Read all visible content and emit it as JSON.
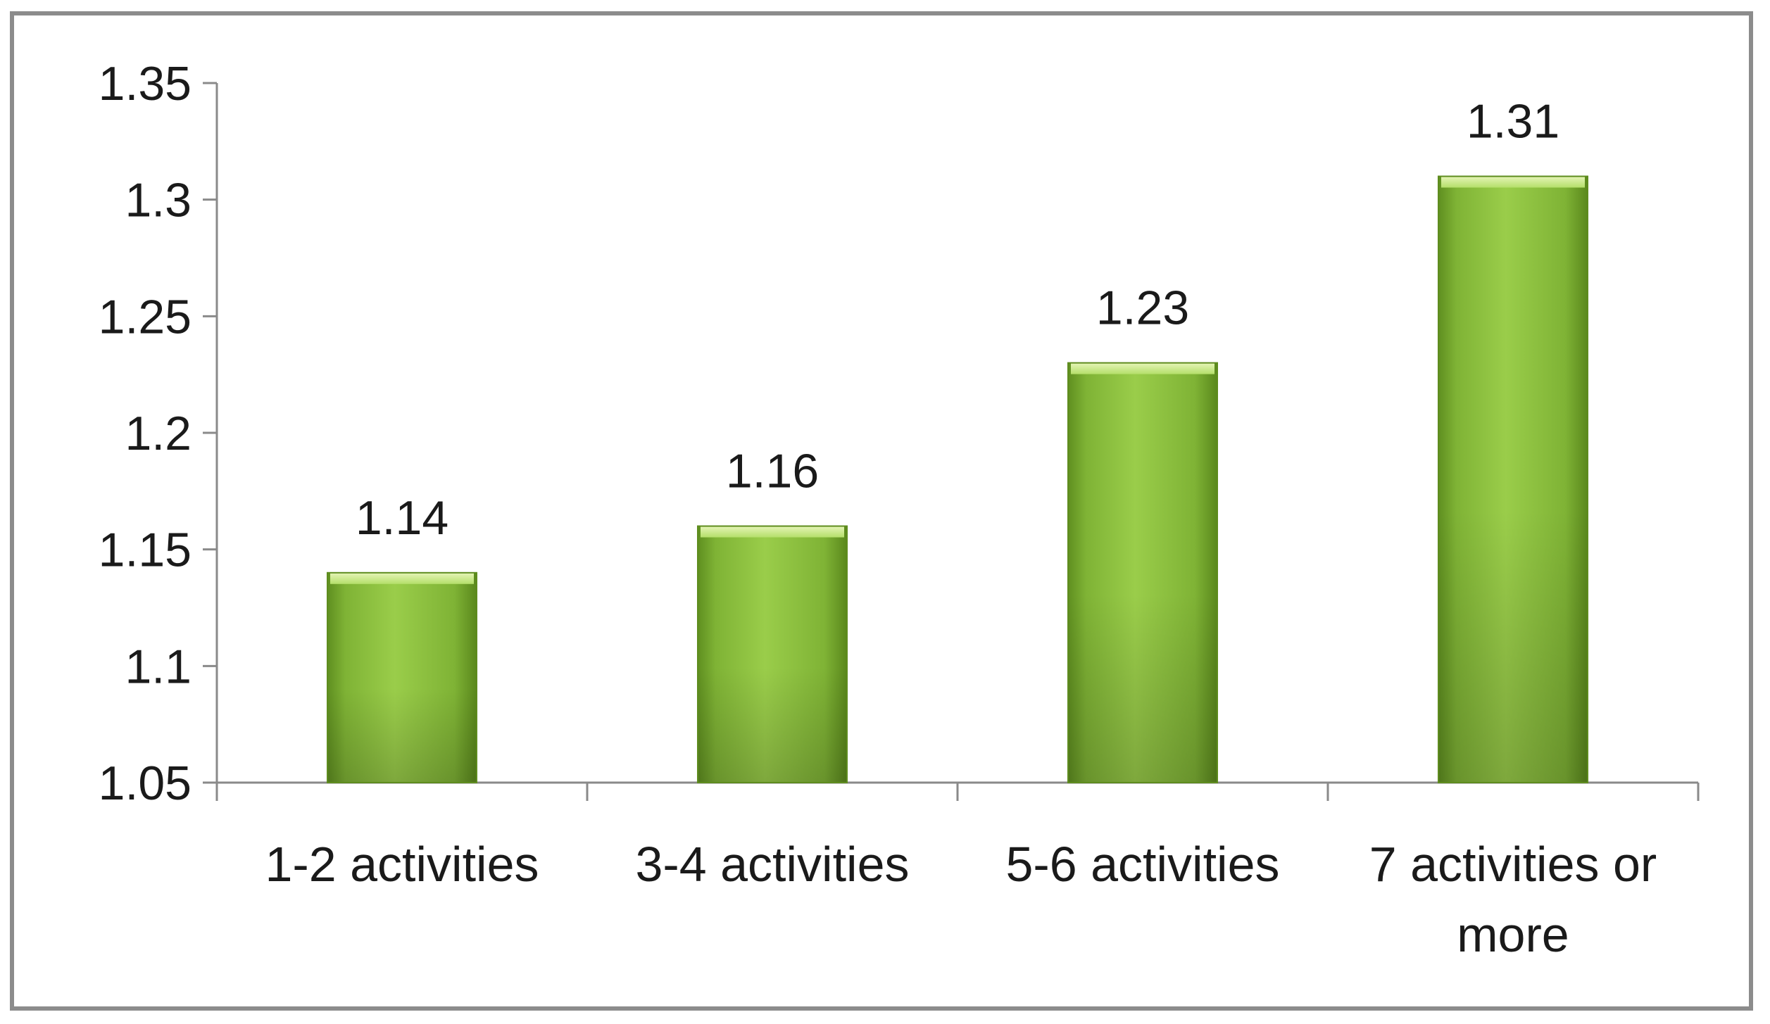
{
  "chart_data": {
    "type": "bar",
    "categories": [
      [
        "1-2 activities"
      ],
      [
        "3-4 activities"
      ],
      [
        "5-6 activities"
      ],
      [
        "7 activities or",
        "more"
      ]
    ],
    "values": [
      1.14,
      1.16,
      1.23,
      1.31
    ],
    "data_labels": [
      "1.14",
      "1.16",
      "1.23",
      "1.31"
    ],
    "title": "",
    "xlabel": "",
    "ylabel": "",
    "ylim": [
      1.05,
      1.35
    ],
    "yticks": [
      1.05,
      1.1,
      1.15,
      1.2,
      1.25,
      1.3,
      1.35
    ],
    "ytick_labels": [
      "1.05",
      "1.1",
      "1.15",
      "1.2",
      "1.25",
      "1.3",
      "1.35"
    ],
    "grid": false,
    "legend": "none",
    "bar_color": "#8dc13f"
  }
}
